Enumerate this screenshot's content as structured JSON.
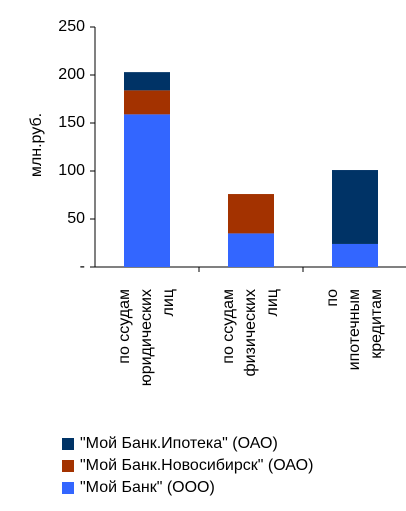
{
  "chart_data": {
    "type": "bar",
    "stacked": true,
    "ylabel": "млн.руб.",
    "categories": [
      [
        "по ссудам",
        "юридических",
        "лиц"
      ],
      [
        "по ссудам",
        "физических",
        "лиц"
      ],
      [
        "по",
        "ипотечным",
        "кредитам"
      ]
    ],
    "series": [
      {
        "name": "\"Мой Банк\" (ООО)",
        "color": "#3366ff",
        "values": [
          159,
          35,
          24
        ]
      },
      {
        "name": "\"Мой Банк.Новосибирск\" (ОАО)",
        "color": "#a33200",
        "values": [
          25,
          41,
          0
        ]
      },
      {
        "name": "\"Мой Банк.Ипотека\" (ОАО)",
        "color": "#003366",
        "values": [
          19,
          0,
          77
        ]
      }
    ],
    "ylim": [
      0,
      250
    ],
    "yticks": [
      {
        "value": 0,
        "label": "-"
      },
      50,
      100,
      150,
      200,
      250
    ]
  }
}
